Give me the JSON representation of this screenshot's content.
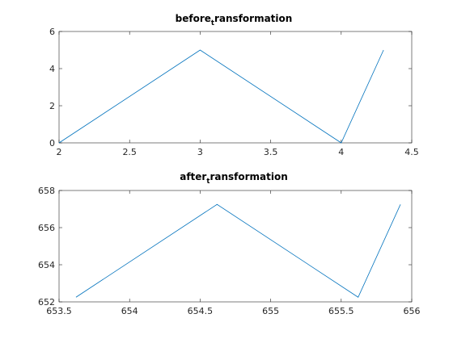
{
  "chart_data": [
    {
      "type": "line",
      "title": {
        "main": "before",
        "subscript": "t",
        "rest": "ransformation"
      },
      "x": [
        2,
        3,
        4,
        4.3
      ],
      "series": [
        {
          "values": [
            0,
            5,
            0,
            5
          ],
          "color": "#0072BD"
        }
      ],
      "xlim": [
        2,
        4.5
      ],
      "ylim": [
        0,
        6
      ],
      "xticks": [
        2,
        2.5,
        3,
        3.5,
        4,
        4.5
      ],
      "yticks": [
        0,
        2,
        4,
        6
      ],
      "xticklabels": [
        "2",
        "2.5",
        "3",
        "3.5",
        "4",
        "4.5"
      ],
      "yticklabels": [
        "0",
        "2",
        "4",
        "6"
      ],
      "grid": false
    },
    {
      "type": "line",
      "title": {
        "main": "after",
        "subscript": "t",
        "rest": "ransformation"
      },
      "x": [
        653.62,
        654.62,
        655.62,
        655.92
      ],
      "series": [
        {
          "values": [
            652.25,
            657.25,
            652.25,
            657.25
          ],
          "color": "#0072BD"
        }
      ],
      "xlim": [
        653.5,
        656
      ],
      "ylim": [
        652,
        658
      ],
      "xticks": [
        653.5,
        654,
        654.5,
        655,
        655.5,
        656
      ],
      "yticks": [
        652,
        654,
        656,
        658
      ],
      "xticklabels": [
        "653.5",
        "654",
        "654.5",
        "655",
        "655.5",
        "656"
      ],
      "yticklabels": [
        "652",
        "654",
        "656",
        "658"
      ],
      "grid": false
    }
  ]
}
